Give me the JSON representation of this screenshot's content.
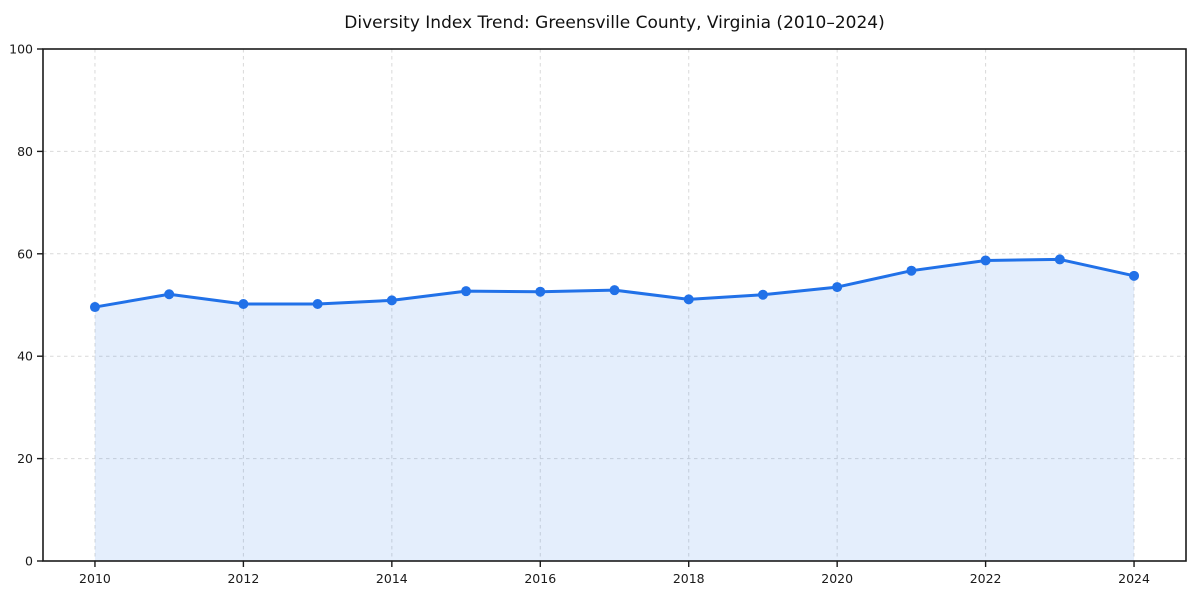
{
  "chart": {
    "title": "Diversity Index Trend: Greensville County, Virginia (2010–2024)"
  },
  "chart_data": {
    "type": "area",
    "title": "Diversity Index Trend: Greensville County, Virginia (2010–2024)",
    "x": [
      2010,
      2011,
      2012,
      2013,
      2014,
      2015,
      2016,
      2017,
      2018,
      2019,
      2020,
      2021,
      2022,
      2023,
      2024
    ],
    "series": [
      {
        "name": "Diversity Index",
        "values": [
          49.6,
          52.1,
          50.2,
          50.2,
          50.9,
          52.7,
          52.6,
          52.9,
          51.1,
          52.0,
          53.5,
          56.7,
          58.7,
          58.9,
          55.7
        ]
      }
    ],
    "xlabel": "",
    "ylabel": "",
    "xlim": [
      2009.3,
      2024.7
    ],
    "ylim": [
      0,
      100
    ],
    "xticks": [
      2010,
      2012,
      2014,
      2016,
      2018,
      2020,
      2022,
      2024
    ],
    "yticks": [
      0,
      20,
      40,
      60,
      80,
      100
    ],
    "grid": true,
    "grid_style": "dashed",
    "legend_position": "none",
    "line_color": "#2171e8",
    "marker_color": "#2171e8",
    "fill_color": "#2171e8",
    "fill_opacity": 0.12,
    "grid_color": "#d9d9d9",
    "axis_color": "#1a1a1a"
  }
}
